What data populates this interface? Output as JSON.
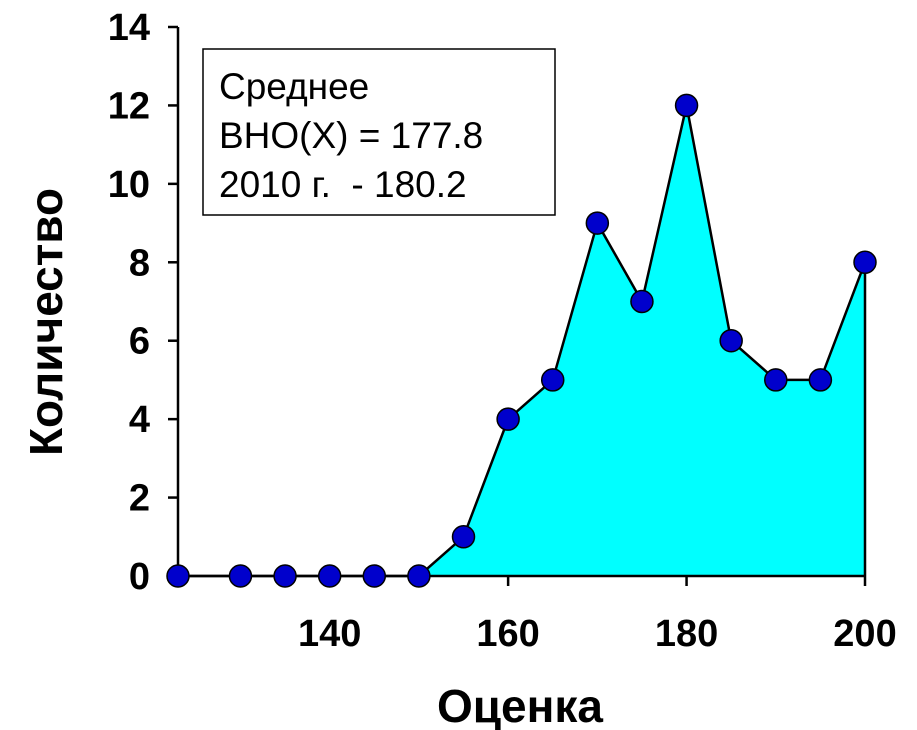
{
  "chart_data": {
    "type": "area",
    "title": "",
    "xlabel": "Оценка",
    "ylabel": "Количество",
    "xlim": [
      123,
      200
    ],
    "ylim": [
      0,
      14
    ],
    "x_ticks": [
      "140",
      "160",
      "180",
      "200"
    ],
    "x_tick_values": [
      140,
      160,
      180,
      200
    ],
    "y_ticks": [
      "0",
      "2",
      "4",
      "6",
      "8",
      "10",
      "12",
      "14"
    ],
    "y_tick_values": [
      0,
      2,
      4,
      6,
      8,
      10,
      12,
      14
    ],
    "grid": false,
    "series": [
      {
        "x": [
          123,
          130,
          135,
          140,
          145,
          150,
          155,
          160,
          165,
          170,
          175,
          180,
          185,
          190,
          195,
          200
        ],
        "values": [
          0,
          0,
          0,
          0,
          0,
          0,
          1,
          4,
          5,
          9,
          7,
          12,
          6,
          5,
          5,
          8
        ]
      }
    ],
    "annotation": {
      "placement": "top-left",
      "lines": [
        "Среднее",
        "ВНО(X) = 177.8",
        "2010 г.  - 180.2"
      ]
    },
    "colors": {
      "fill": "#00FFFF",
      "marker": "#0000CC",
      "line": "#000000"
    }
  }
}
